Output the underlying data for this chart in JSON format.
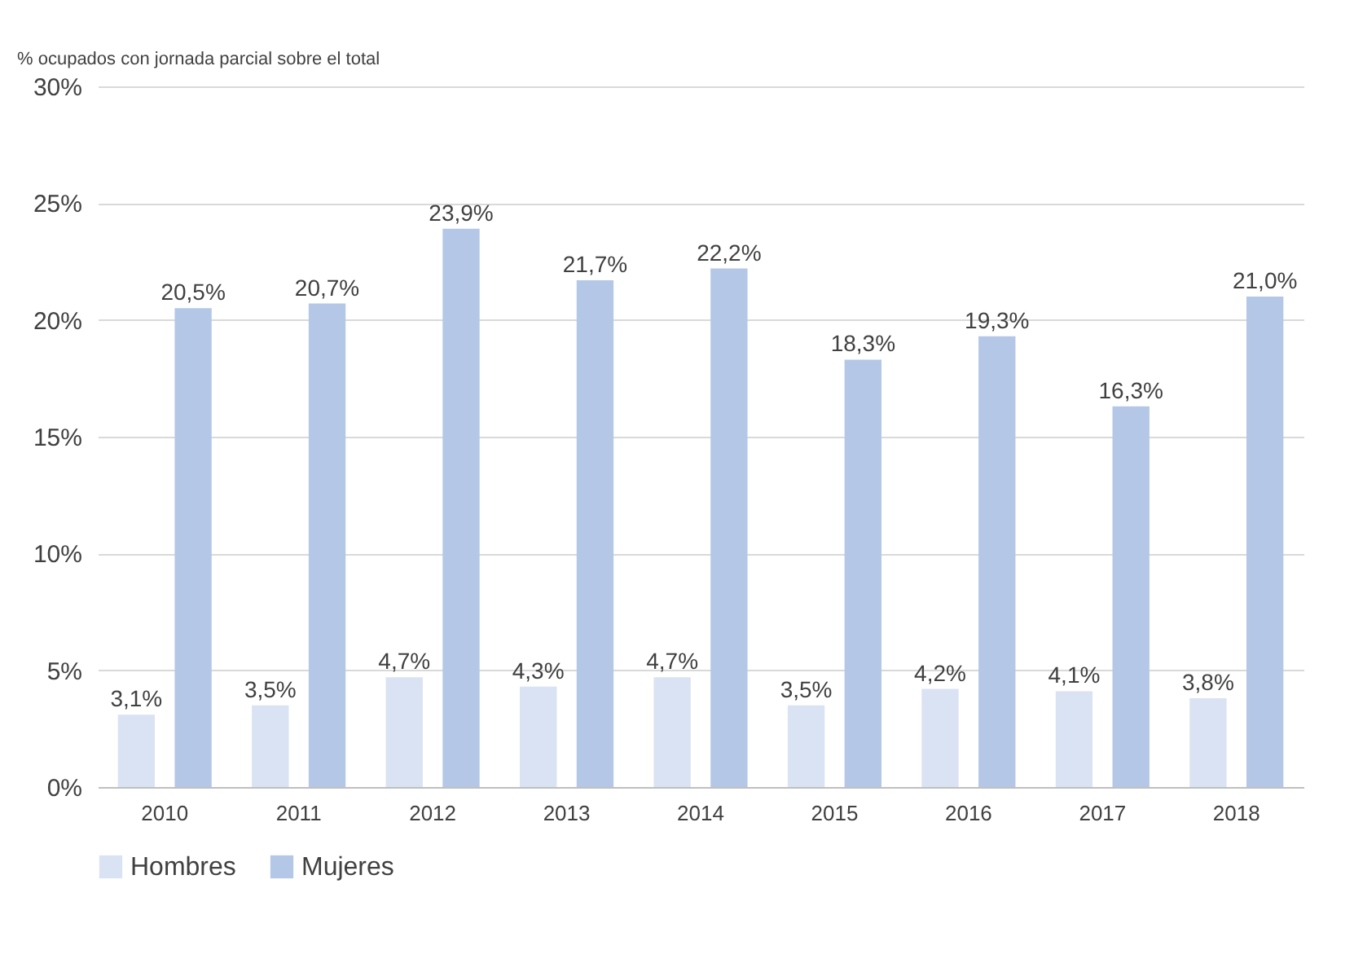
{
  "chart_data": {
    "type": "bar",
    "ylabel": "% ocupados con jornada parcial sobre el total",
    "categories": [
      "2010",
      "2011",
      "2012",
      "2013",
      "2014",
      "2015",
      "2016",
      "2017",
      "2018"
    ],
    "series": [
      {
        "name": "Hombres",
        "color": "#dae3f3",
        "values": [
          3.1,
          3.5,
          4.7,
          4.3,
          4.7,
          3.5,
          4.2,
          4.1,
          3.8
        ],
        "value_labels": [
          "3,1%",
          "3,5%",
          "4,7%",
          "4,3%",
          "4,7%",
          "3,5%",
          "4,2%",
          "4,1%",
          "3,8%"
        ]
      },
      {
        "name": "Mujeres",
        "color": "#b4c7e7",
        "values": [
          20.5,
          20.7,
          23.9,
          21.7,
          22.2,
          18.3,
          19.3,
          16.3,
          21.0
        ],
        "value_labels": [
          "20,5%",
          "20,7%",
          "23,9%",
          "21,7%",
          "22,2%",
          "18,3%",
          "19,3%",
          "16,3%",
          "21,0%"
        ]
      }
    ],
    "ylim": [
      0,
      30
    ],
    "yticks": [
      {
        "value": 0,
        "label": "0%"
      },
      {
        "value": 5,
        "label": "5%"
      },
      {
        "value": 10,
        "label": "10%"
      },
      {
        "value": 15,
        "label": "15%"
      },
      {
        "value": 20,
        "label": "20%"
      },
      {
        "value": 25,
        "label": "25%"
      },
      {
        "value": 30,
        "label": "30%"
      }
    ],
    "grid": "y",
    "legend": "bottom"
  }
}
